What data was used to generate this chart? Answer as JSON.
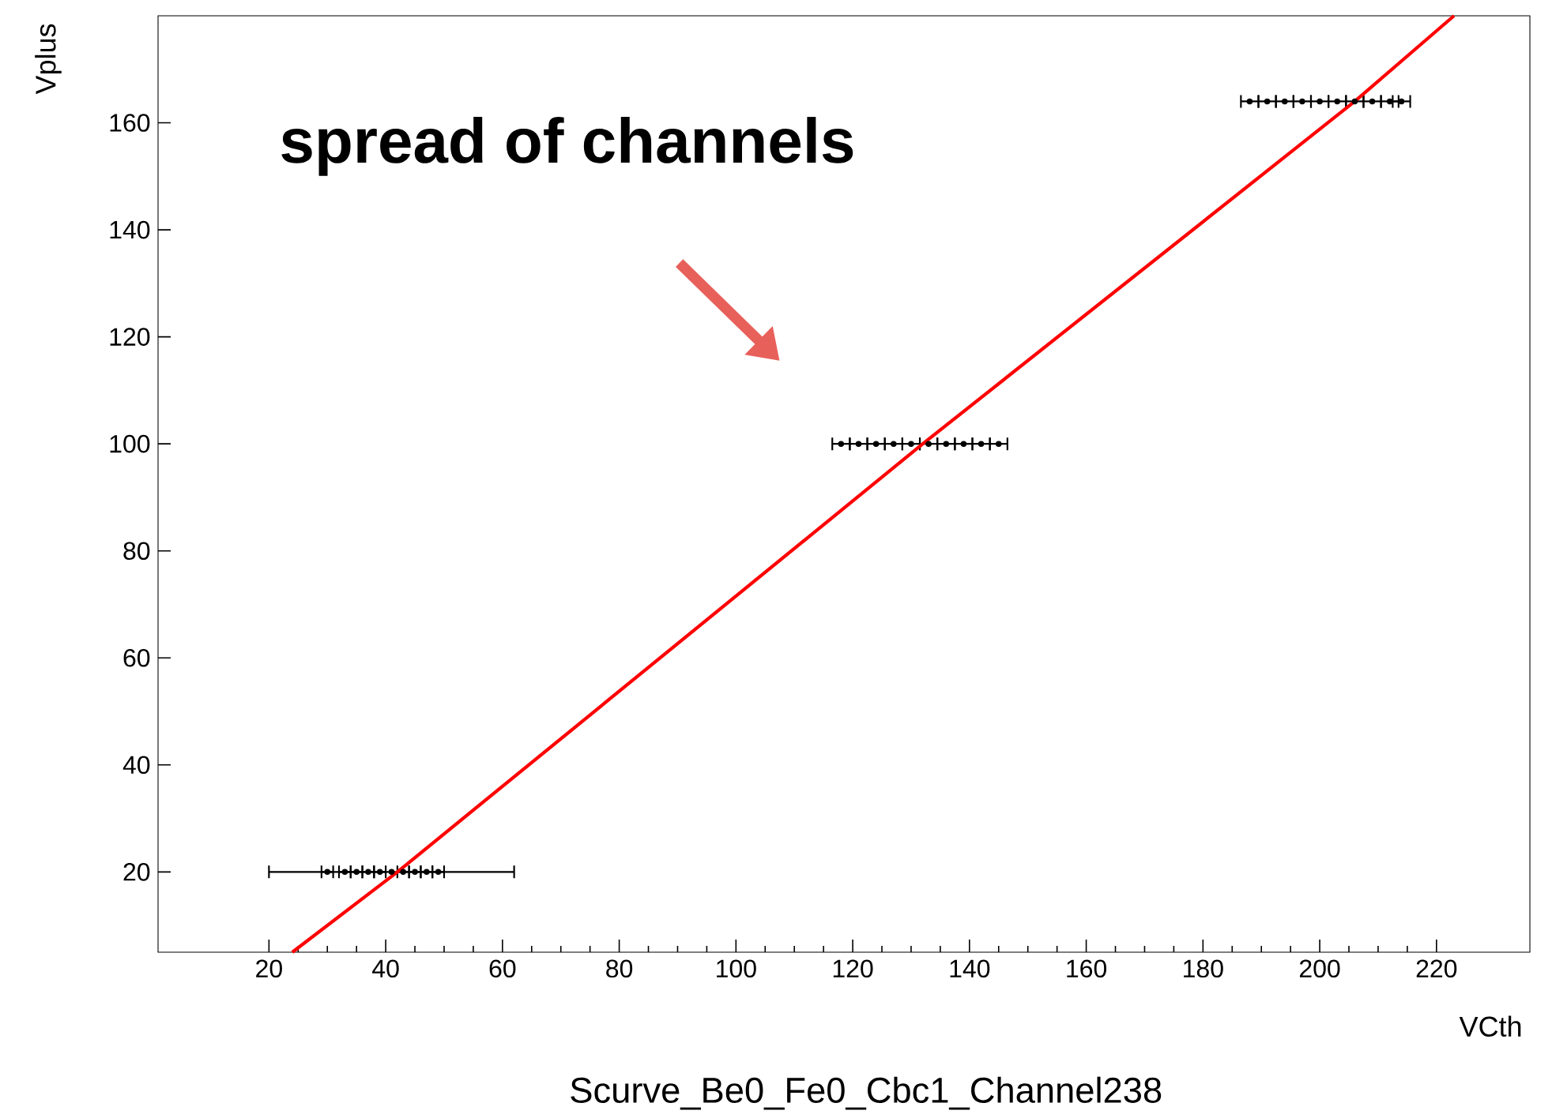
{
  "chart_data": {
    "type": "scatter",
    "xlabel": "VCth",
    "ylabel": "Vplus",
    "xlim": [
      1,
      236
    ],
    "ylim": [
      5,
      180
    ],
    "xticks": [
      20,
      40,
      60,
      80,
      100,
      120,
      140,
      160,
      180,
      200,
      220
    ],
    "yticks": [
      20,
      40,
      60,
      80,
      100,
      120,
      140,
      160
    ],
    "marker": "circle",
    "annotations": [
      "spread of channels",
      "Scurve_Be0_Fe0_Cbc1_Channel238"
    ],
    "series": [
      {
        "color": "#000000",
        "x": [
          30,
          33,
          35,
          37,
          39,
          41,
          43,
          45,
          47,
          49,
          118,
          121,
          124,
          127,
          130,
          133,
          136,
          139,
          142,
          145,
          188,
          191,
          194,
          197,
          200,
          203,
          206,
          209,
          212,
          214
        ],
        "values": [
          20,
          20,
          20,
          20,
          20,
          20,
          20,
          20,
          20,
          20,
          100,
          100,
          100,
          100,
          100,
          100,
          100,
          100,
          100,
          100,
          164,
          164,
          164,
          164,
          164,
          164,
          164,
          164,
          164,
          164
        ],
        "xerrors": [
          1,
          1,
          1,
          1,
          1,
          21,
          1,
          1,
          1,
          1,
          1.5,
          1.5,
          1.5,
          1.5,
          1.5,
          1.5,
          1.5,
          1.5,
          1.5,
          1.5,
          1.5,
          1.5,
          1.5,
          1.5,
          1.5,
          1.5,
          1.5,
          1.5,
          1.5,
          1.5
        ]
      },
      {
        "type": "line",
        "color": "#ff0000",
        "marker": "none",
        "x": [
          24,
          42,
          132,
          206,
          223
        ],
        "values": [
          5,
          20,
          100,
          164,
          180
        ]
      }
    ]
  }
}
